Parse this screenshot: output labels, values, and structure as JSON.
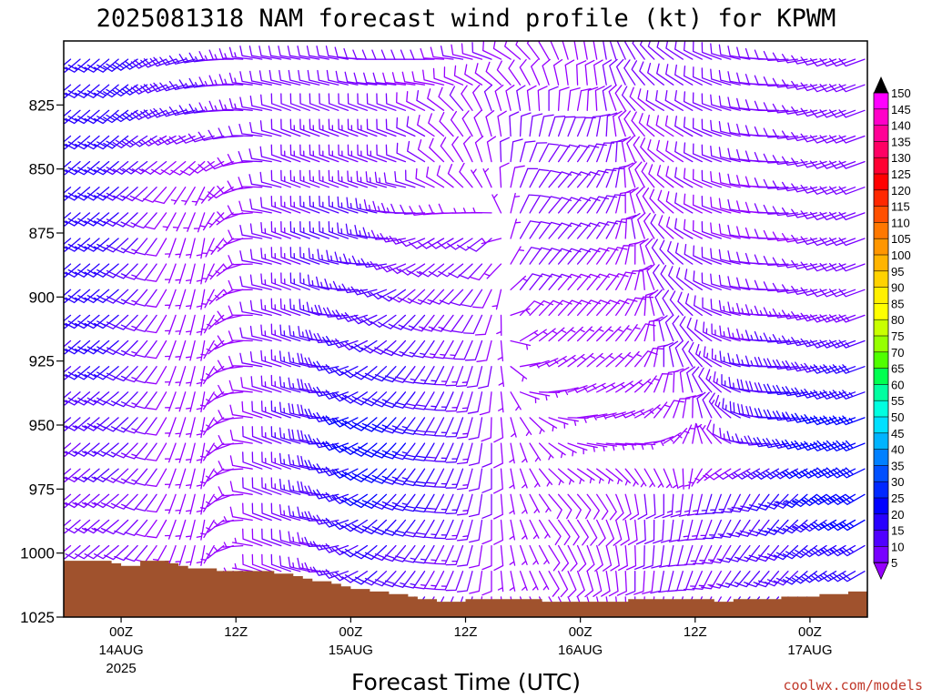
{
  "chart_data": {
    "type": "wind-barb-profile",
    "title": "2025081318 NAM forecast wind profile (kt) for KPWM",
    "xlabel": "Forecast Time (UTC)",
    "ylabel": "",
    "y_axis": {
      "reversed": true,
      "range": [
        1025,
        800
      ],
      "ticks": [
        "825",
        "850",
        "875",
        "900",
        "925",
        "950",
        "975",
        "1000",
        "1025"
      ]
    },
    "x_axis": {
      "range_hours_from_init": [
        0,
        84
      ],
      "ticks": [
        {
          "hour": 6,
          "label": "00Z",
          "sub": "14AUG",
          "sub2": "2025"
        },
        {
          "hour": 18,
          "label": "12Z",
          "sub": "",
          "sub2": ""
        },
        {
          "hour": 30,
          "label": "00Z",
          "sub": "15AUG",
          "sub2": ""
        },
        {
          "hour": 42,
          "label": "12Z",
          "sub": "",
          "sub2": ""
        },
        {
          "hour": 54,
          "label": "00Z",
          "sub": "16AUG",
          "sub2": ""
        },
        {
          "hour": 66,
          "label": "12Z",
          "sub": "",
          "sub2": ""
        },
        {
          "hour": 78,
          "label": "00Z",
          "sub": "17AUG",
          "sub2": ""
        }
      ]
    },
    "colorbar": {
      "levels": [
        "150",
        "145",
        "140",
        "135",
        "130",
        "125",
        "120",
        "115",
        "110",
        "105",
        "100",
        "95",
        "90",
        "85",
        "80",
        "75",
        "70",
        "65",
        "60",
        "55",
        "50",
        "45",
        "40",
        "35",
        "30",
        "25",
        "20",
        "15",
        "10",
        "5"
      ],
      "colors": [
        "#ff00ff",
        "#ff00c8",
        "#ff0096",
        "#ff0064",
        "#ff0032",
        "#ff0000",
        "#ff2800",
        "#ff5000",
        "#ff7800",
        "#ff9600",
        "#ffb400",
        "#ffd200",
        "#fff000",
        "#ffff00",
        "#c8ff00",
        "#96ff00",
        "#50ff00",
        "#00ff50",
        "#00ffa0",
        "#00ffe0",
        "#00e0ff",
        "#00b4ff",
        "#0080ff",
        "#0050ff",
        "#0028ff",
        "#0000ff",
        "#2800ff",
        "#5000ff",
        "#7800ff",
        "#9600ff"
      ]
    },
    "terrain_color": "#a0522d",
    "surface_pressure_hpa": [
      1003,
      1003,
      1003,
      1003,
      1003,
      1004,
      1005,
      1005,
      1003,
      1003,
      1003,
      1004,
      1005,
      1006,
      1006,
      1006,
      1007,
      1007,
      1007,
      1007,
      1007,
      1007,
      1008,
      1008,
      1009,
      1010,
      1011,
      1011,
      1012,
      1013,
      1014,
      1014,
      1015,
      1015,
      1016,
      1016,
      1017,
      1018,
      1018,
      1019,
      1019,
      1019,
      1018,
      1018,
      1018,
      1018,
      1018,
      1018,
      1018,
      1018,
      1019,
      1019,
      1019,
      1019,
      1019,
      1019,
      1019,
      1019,
      1019,
      1018,
      1018,
      1018,
      1018,
      1018,
      1018,
      1018,
      1018,
      1018,
      1019,
      1019,
      1018,
      1018,
      1018,
      1018,
      1018,
      1017,
      1017,
      1017,
      1017,
      1016,
      1016,
      1016,
      1015,
      1015,
      1014
    ],
    "wind_grid": {
      "hours": [
        0,
        3,
        6,
        9,
        12,
        15,
        18,
        21,
        24,
        27,
        30,
        33,
        36,
        39,
        42,
        45,
        48,
        51,
        54,
        57,
        60,
        63,
        66,
        69,
        72,
        75,
        78,
        81,
        84
      ],
      "levels_hpa": [
        810,
        825,
        850,
        875,
        900,
        925,
        950,
        975,
        1000
      ],
      "direction_deg": [
        [
          230,
          230,
          230,
          240,
          250,
          260,
          270,
          280,
          280,
          280,
          280,
          270,
          270,
          270,
          280,
          290,
          310,
          330,
          350,
          350,
          330,
          310,
          300,
          290,
          280,
          270,
          260,
          250,
          250
        ],
        [
          230,
          230,
          230,
          240,
          250,
          260,
          270,
          280,
          290,
          290,
          290,
          290,
          290,
          300,
          320,
          340,
          350,
          0,
          10,
          350,
          320,
          300,
          300,
          290,
          280,
          270,
          260,
          250,
          250
        ],
        [
          230,
          230,
          230,
          230,
          220,
          210,
          240,
          270,
          290,
          290,
          290,
          290,
          290,
          310,
          330,
          350,
          20,
          40,
          40,
          20,
          340,
          310,
          300,
          290,
          280,
          270,
          260,
          250,
          250
        ],
        [
          230,
          230,
          230,
          220,
          200,
          190,
          230,
          280,
          290,
          290,
          290,
          280,
          260,
          240,
          240,
          230,
          30,
          40,
          40,
          30,
          350,
          320,
          300,
          290,
          280,
          270,
          260,
          250,
          250
        ],
        [
          230,
          230,
          230,
          220,
          200,
          190,
          240,
          280,
          290,
          290,
          270,
          250,
          230,
          220,
          220,
          200,
          40,
          40,
          40,
          40,
          20,
          330,
          310,
          290,
          280,
          270,
          260,
          250,
          250
        ],
        [
          230,
          230,
          230,
          220,
          200,
          190,
          250,
          280,
          290,
          280,
          250,
          230,
          220,
          210,
          200,
          190,
          80,
          60,
          50,
          50,
          40,
          360,
          330,
          300,
          280,
          270,
          260,
          250,
          250
        ],
        [
          230,
          230,
          230,
          220,
          200,
          190,
          250,
          290,
          290,
          280,
          250,
          230,
          220,
          210,
          200,
          180,
          160,
          120,
          90,
          80,
          70,
          40,
          10,
          330,
          290,
          270,
          260,
          250,
          250
        ],
        [
          230,
          230,
          230,
          220,
          200,
          190,
          250,
          290,
          290,
          280,
          250,
          230,
          220,
          210,
          200,
          180,
          160,
          140,
          140,
          150,
          170,
          180,
          190,
          200,
          210,
          220,
          230,
          240,
          240
        ],
        [
          230,
          230,
          230,
          220,
          200,
          190,
          250,
          290,
          290,
          280,
          250,
          230,
          220,
          210,
          200,
          180,
          160,
          150,
          160,
          170,
          180,
          190,
          200,
          210,
          220,
          220,
          230,
          240,
          240
        ]
      ],
      "speed_kt": [
        [
          22,
          22,
          22,
          20,
          18,
          16,
          14,
          12,
          12,
          12,
          12,
          12,
          10,
          10,
          10,
          10,
          8,
          8,
          8,
          10,
          12,
          12,
          12,
          12,
          12,
          12,
          12,
          12,
          12
        ],
        [
          22,
          22,
          22,
          20,
          18,
          16,
          14,
          12,
          12,
          12,
          12,
          12,
          10,
          10,
          10,
          10,
          10,
          10,
          10,
          10,
          10,
          10,
          10,
          12,
          12,
          12,
          12,
          12,
          12
        ],
        [
          22,
          22,
          22,
          14,
          8,
          7,
          8,
          10,
          12,
          14,
          14,
          14,
          12,
          10,
          10,
          10,
          12,
          12,
          12,
          12,
          10,
          10,
          10,
          10,
          10,
          10,
          12,
          12,
          12
        ],
        [
          22,
          22,
          22,
          14,
          7,
          6,
          7,
          10,
          14,
          16,
          16,
          16,
          14,
          12,
          12,
          10,
          12,
          12,
          12,
          10,
          10,
          10,
          10,
          10,
          10,
          10,
          10,
          12,
          12
        ],
        [
          20,
          22,
          22,
          14,
          7,
          6,
          7,
          10,
          14,
          16,
          18,
          18,
          16,
          14,
          12,
          10,
          10,
          10,
          8,
          8,
          8,
          12,
          12,
          12,
          12,
          12,
          12,
          12,
          12
        ],
        [
          18,
          20,
          20,
          14,
          7,
          6,
          7,
          10,
          14,
          18,
          22,
          22,
          20,
          16,
          14,
          10,
          6,
          6,
          6,
          6,
          8,
          10,
          12,
          14,
          16,
          18,
          20,
          20,
          20
        ],
        [
          14,
          16,
          18,
          14,
          7,
          6,
          7,
          10,
          16,
          20,
          26,
          28,
          26,
          20,
          16,
          10,
          6,
          6,
          6,
          6,
          6,
          8,
          10,
          14,
          18,
          22,
          26,
          28,
          28
        ],
        [
          12,
          14,
          14,
          12,
          7,
          6,
          7,
          10,
          14,
          18,
          24,
          26,
          24,
          20,
          16,
          10,
          6,
          8,
          8,
          8,
          10,
          12,
          14,
          16,
          18,
          22,
          26,
          28,
          28
        ],
        [
          8,
          10,
          12,
          10,
          6,
          6,
          6,
          8,
          10,
          14,
          18,
          20,
          18,
          14,
          12,
          8,
          6,
          8,
          8,
          8,
          10,
          10,
          12,
          14,
          16,
          18,
          20,
          22,
          22
        ]
      ]
    }
  },
  "footer": {
    "credit": "coolwx.com/models"
  }
}
